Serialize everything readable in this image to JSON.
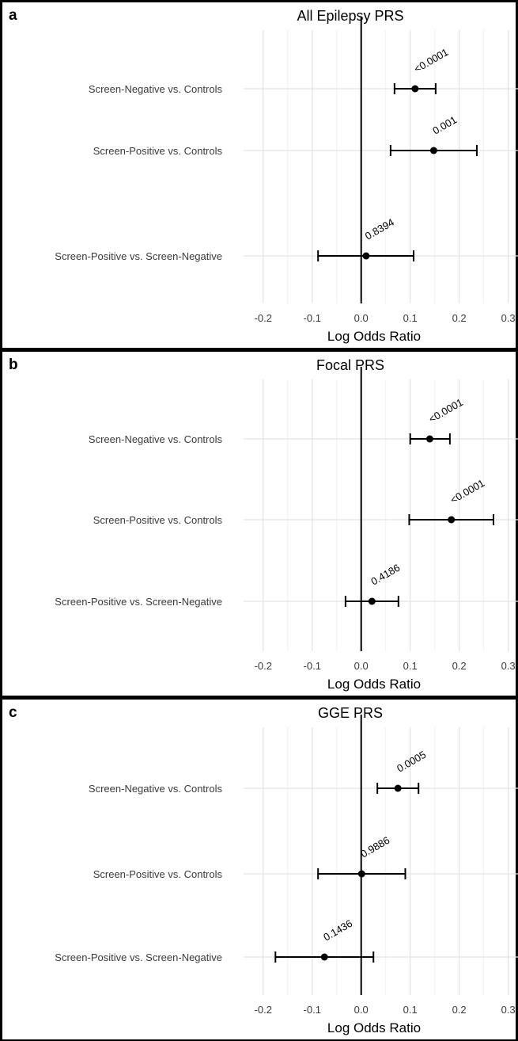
{
  "chart_data": [
    {
      "type": "forest",
      "panel_label": "a",
      "title": "All Epilepsy PRS",
      "xlabel": "Log Odds Ratio",
      "xticks": [
        -0.2,
        -0.1,
        0.0,
        0.1,
        0.2,
        0.3
      ],
      "xlim": [
        -0.2,
        0.3
      ],
      "reference_line": 0.0,
      "grid": true,
      "rows": [
        {
          "label": "Screen-Negative vs. Controls",
          "estimate": 0.11,
          "ci_low": 0.068,
          "ci_high": 0.152,
          "p_label": "<0.0001"
        },
        {
          "label": "Screen-Positive vs. Controls",
          "estimate": 0.148,
          "ci_low": 0.06,
          "ci_high": 0.236,
          "p_label": "0.001"
        },
        {
          "label": "Screen-Positive vs. Screen-Negative",
          "estimate": 0.01,
          "ci_low": -0.088,
          "ci_high": 0.107,
          "p_label": "0.8394"
        }
      ]
    },
    {
      "type": "forest",
      "panel_label": "b",
      "title": "Focal PRS",
      "xlabel": "Log Odds Ratio",
      "xticks": [
        -0.2,
        -0.1,
        0.0,
        0.1,
        0.2,
        0.3
      ],
      "xlim": [
        -0.2,
        0.3
      ],
      "reference_line": 0.0,
      "grid": true,
      "rows": [
        {
          "label": "Screen-Negative vs. Controls",
          "estimate": 0.14,
          "ci_low": 0.1,
          "ci_high": 0.181,
          "p_label": "<0.0001"
        },
        {
          "label": "Screen-Positive vs. Controls",
          "estimate": 0.184,
          "ci_low": 0.098,
          "ci_high": 0.27,
          "p_label": "<0.0001"
        },
        {
          "label": "Screen-Positive vs. Screen-Negative",
          "estimate": 0.022,
          "ci_low": -0.032,
          "ci_high": 0.076,
          "p_label": "0.4186"
        }
      ]
    },
    {
      "type": "forest",
      "panel_label": "c",
      "title": "GGE PRS",
      "xlabel": "Log Odds Ratio",
      "xticks": [
        -0.2,
        -0.1,
        0.0,
        0.1,
        0.2,
        0.3
      ],
      "xlim": [
        -0.2,
        0.3
      ],
      "reference_line": 0.0,
      "grid": true,
      "rows": [
        {
          "label": "Screen-Negative vs. Controls",
          "estimate": 0.075,
          "ci_low": 0.033,
          "ci_high": 0.117,
          "p_label": "0.0005"
        },
        {
          "label": "Screen-Positive vs. Controls",
          "estimate": 0.001,
          "ci_low": -0.088,
          "ci_high": 0.09,
          "p_label": "0.9886"
        },
        {
          "label": "Screen-Positive vs. Screen-Negative",
          "estimate": -0.075,
          "ci_low": -0.175,
          "ci_high": 0.025,
          "p_label": "0.1436"
        }
      ]
    }
  ]
}
